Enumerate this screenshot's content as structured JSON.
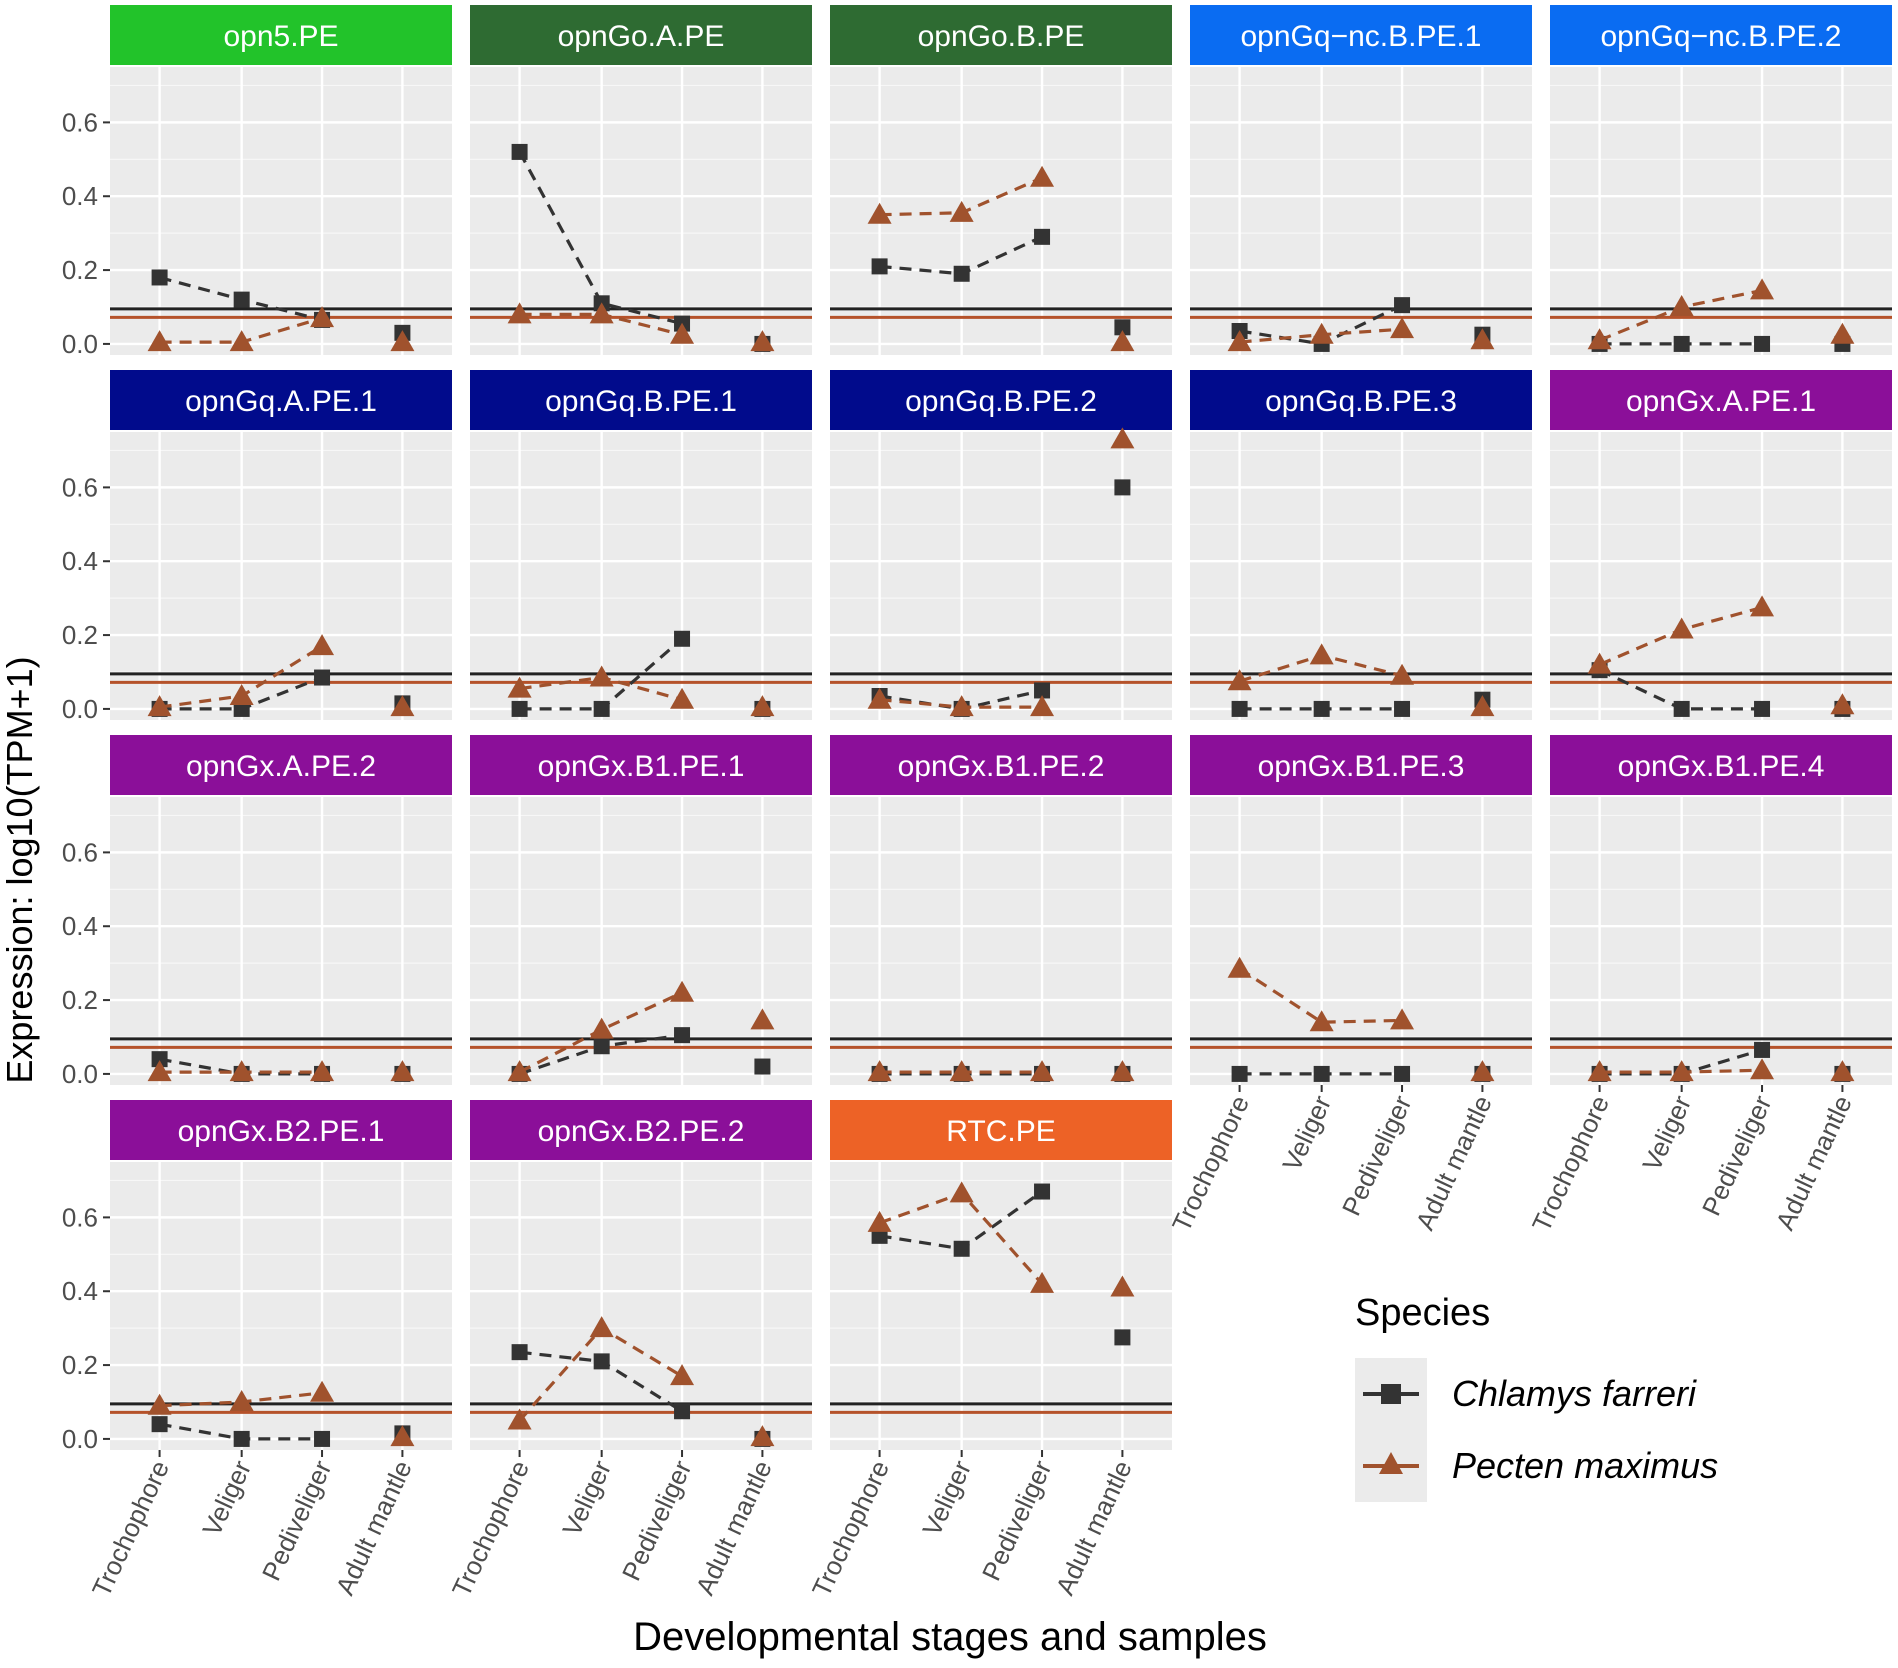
{
  "chart_data": {
    "type": "line",
    "ylabel": "Expression: log10(TPM+1)",
    "xlabel": "Developmental stages and samples",
    "categories": [
      "Trochophore",
      "Veliger",
      "Pediveliger",
      "Adult mantle"
    ],
    "yticks": [
      "0.0",
      "0.2",
      "0.4",
      "0.6"
    ],
    "ylim": [
      -0.03,
      0.75
    ],
    "grid": true,
    "thresholds": {
      "Chlamys farreri": 0.095,
      "Pecten maximus": 0.072
    },
    "legend": {
      "title": "Species",
      "placement": "bottom-right",
      "entries": [
        {
          "name": "Chlamys farreri",
          "color": "#333333",
          "marker": "square"
        },
        {
          "name": "Pecten maximus",
          "color": "#a0522d",
          "marker": "triangle"
        }
      ]
    },
    "panels": [
      {
        "title": "opn5.PE",
        "strip_color": "#22c32a",
        "series": [
          {
            "name": "Chlamys farreri",
            "values": [
              0.18,
              0.12,
              0.065,
              0.03
            ]
          },
          {
            "name": "Pecten maximus",
            "values": [
              0.005,
              0.005,
              0.07,
              0.005
            ]
          }
        ]
      },
      {
        "title": "opnGo.A.PE",
        "strip_color": "#2e6b32",
        "series": [
          {
            "name": "Chlamys farreri",
            "values": [
              0.52,
              0.11,
              0.055,
              0.0
            ]
          },
          {
            "name": "Pecten maximus",
            "values": [
              0.08,
              0.08,
              0.025,
              0.005
            ]
          }
        ]
      },
      {
        "title": "opnGo.B.PE",
        "strip_color": "#2e6b32",
        "series": [
          {
            "name": "Chlamys farreri",
            "values": [
              0.21,
              0.19,
              0.29,
              0.045
            ]
          },
          {
            "name": "Pecten maximus",
            "values": [
              0.35,
              0.355,
              0.45,
              0.005
            ]
          }
        ]
      },
      {
        "title": "opnGq−nc.B.PE.1",
        "strip_color": "#0a6cf2",
        "series": [
          {
            "name": "Chlamys farreri",
            "values": [
              0.035,
              0.0,
              0.105,
              0.025
            ]
          },
          {
            "name": "Pecten maximus",
            "values": [
              0.005,
              0.025,
              0.04,
              0.01
            ]
          }
        ]
      },
      {
        "title": "opnGq−nc.B.PE.2",
        "strip_color": "#0a6cf2",
        "series": [
          {
            "name": "Chlamys farreri",
            "values": [
              0.0,
              0.0,
              0.0,
              0.0
            ]
          },
          {
            "name": "Pecten maximus",
            "values": [
              0.01,
              0.1,
              0.145,
              0.025
            ]
          }
        ]
      },
      {
        "title": "opnGq.A.PE.1",
        "strip_color": "#010b8c",
        "series": [
          {
            "name": "Chlamys farreri",
            "values": [
              0.0,
              0.0,
              0.085,
              0.015
            ]
          },
          {
            "name": "Pecten maximus",
            "values": [
              0.005,
              0.035,
              0.17,
              0.005
            ]
          }
        ]
      },
      {
        "title": "opnGq.B.PE.1",
        "strip_color": "#010b8c",
        "series": [
          {
            "name": "Chlamys farreri",
            "values": [
              0.0,
              0.0,
              0.19,
              0.0
            ]
          },
          {
            "name": "Pecten maximus",
            "values": [
              0.055,
              0.085,
              0.025,
              0.005
            ]
          }
        ]
      },
      {
        "title": "opnGq.B.PE.2",
        "strip_color": "#010b8c",
        "series": [
          {
            "name": "Chlamys farreri",
            "values": [
              0.035,
              0.0,
              0.05,
              0.6
            ]
          },
          {
            "name": "Pecten maximus",
            "values": [
              0.025,
              0.005,
              0.005,
              0.73
            ]
          }
        ]
      },
      {
        "title": "opnGq.B.PE.3",
        "strip_color": "#010b8c",
        "series": [
          {
            "name": "Chlamys farreri",
            "values": [
              0.0,
              0.0,
              0.0,
              0.025
            ]
          },
          {
            "name": "Pecten maximus",
            "values": [
              0.075,
              0.145,
              0.09,
              0.005
            ]
          }
        ]
      },
      {
        "title": "opnGx.A.PE.1",
        "strip_color": "#8b0f99",
        "series": [
          {
            "name": "Chlamys farreri",
            "values": [
              0.105,
              0.0,
              0.0,
              0.0
            ]
          },
          {
            "name": "Pecten maximus",
            "values": [
              0.12,
              0.215,
              0.275,
              0.01
            ]
          }
        ]
      },
      {
        "title": "opnGx.A.PE.2",
        "strip_color": "#8b0f99",
        "series": [
          {
            "name": "Chlamys farreri",
            "values": [
              0.04,
              0.0,
              0.0,
              0.0
            ]
          },
          {
            "name": "Pecten maximus",
            "values": [
              0.005,
              0.005,
              0.005,
              0.005
            ]
          }
        ]
      },
      {
        "title": "opnGx.B1.PE.1",
        "strip_color": "#8b0f99",
        "series": [
          {
            "name": "Chlamys farreri",
            "values": [
              0.0,
              0.075,
              0.105,
              0.02
            ]
          },
          {
            "name": "Pecten maximus",
            "values": [
              0.005,
              0.12,
              0.22,
              0.145
            ]
          }
        ]
      },
      {
        "title": "opnGx.B1.PE.2",
        "strip_color": "#8b0f99",
        "series": [
          {
            "name": "Chlamys farreri",
            "values": [
              0.0,
              0.0,
              0.0,
              0.0
            ]
          },
          {
            "name": "Pecten maximus",
            "values": [
              0.005,
              0.005,
              0.005,
              0.005
            ]
          }
        ]
      },
      {
        "title": "opnGx.B1.PE.3",
        "strip_color": "#8b0f99",
        "series": [
          {
            "name": "Chlamys farreri",
            "values": [
              0.0,
              0.0,
              0.0,
              0.0
            ]
          },
          {
            "name": "Pecten maximus",
            "values": [
              0.285,
              0.14,
              0.145,
              0.005
            ]
          }
        ]
      },
      {
        "title": "opnGx.B1.PE.4",
        "strip_color": "#8b0f99",
        "series": [
          {
            "name": "Chlamys farreri",
            "values": [
              0.0,
              0.0,
              0.065,
              0.0
            ]
          },
          {
            "name": "Pecten maximus",
            "values": [
              0.005,
              0.005,
              0.01,
              0.005
            ]
          }
        ]
      },
      {
        "title": "opnGx.B2.PE.1",
        "strip_color": "#8b0f99",
        "series": [
          {
            "name": "Chlamys farreri",
            "values": [
              0.04,
              0.0,
              0.0,
              0.015
            ]
          },
          {
            "name": "Pecten maximus",
            "values": [
              0.09,
              0.1,
              0.125,
              0.005
            ]
          }
        ]
      },
      {
        "title": "opnGx.B2.PE.2",
        "strip_color": "#8b0f99",
        "series": [
          {
            "name": "Chlamys farreri",
            "values": [
              0.235,
              0.21,
              0.075,
              0.0
            ]
          },
          {
            "name": "Pecten maximus",
            "values": [
              0.05,
              0.3,
              0.17,
              0.005
            ]
          }
        ]
      },
      {
        "title": "RTC.PE",
        "strip_color": "#ed6226",
        "series": [
          {
            "name": "Chlamys farreri",
            "values": [
              0.55,
              0.515,
              0.67,
              0.275
            ]
          },
          {
            "name": "Pecten maximus",
            "values": [
              0.585,
              0.665,
              0.42,
              0.41
            ]
          }
        ]
      }
    ]
  }
}
